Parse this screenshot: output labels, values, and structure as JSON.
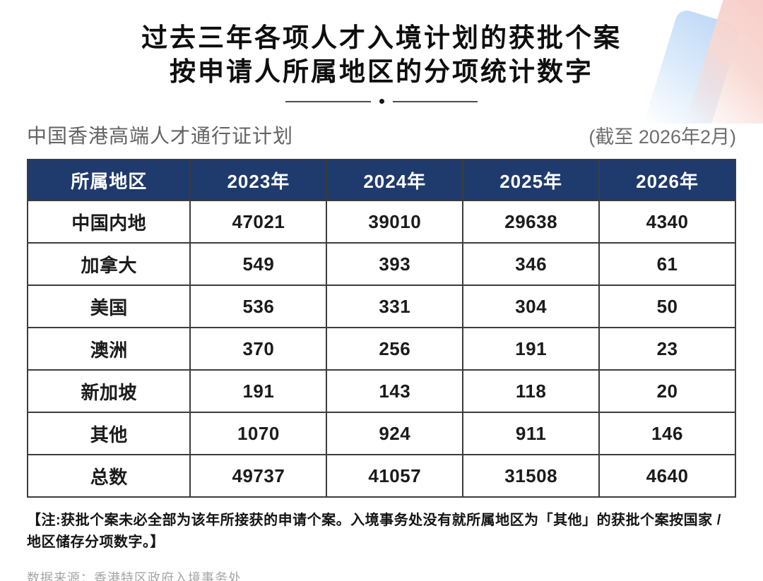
{
  "header": {
    "title_line1": "过去三年各项人才入境计划的获批个案",
    "title_line2": "按申请人所属地区的分项统计数字"
  },
  "subheader": {
    "scheme": "中国香港高端人才通行证计划",
    "as_of": "(截至 2026年2月)"
  },
  "chart_data": {
    "type": "table",
    "title": "过去三年各项人才入境计划的获批个案按申请人所属地区的分项统计数字",
    "subtitle": "中国香港高端人才通行证计划 (截至 2026年2月)",
    "columns": [
      "所属地区",
      "2023年",
      "2024年",
      "2025年",
      "2026年"
    ],
    "rows": [
      [
        "中国内地",
        "47021",
        "39010",
        "29638",
        "4340"
      ],
      [
        "加拿大",
        "549",
        "393",
        "346",
        "61"
      ],
      [
        "美国",
        "536",
        "331",
        "304",
        "50"
      ],
      [
        "澳洲",
        "370",
        "256",
        "191",
        "23"
      ],
      [
        "新加坡",
        "191",
        "143",
        "118",
        "20"
      ],
      [
        "其他",
        "1070",
        "924",
        "911",
        "146"
      ],
      [
        "总数",
        "49737",
        "41057",
        "31508",
        "4640"
      ]
    ]
  },
  "footer": {
    "note": "【注:获批个案未必全部为该年所接获的申请个案。入境事务处没有就所属地区为「其他」的获批个案按国家 / 地区储存分项数字。】",
    "source": "数据来源：香港特区政府入境事务处"
  },
  "colors": {
    "header_bg": "#1F3A6D",
    "table_border": "#3C3C3C",
    "accent_blue": "#BDD7F7",
    "accent_pink": "#F6C5C2"
  }
}
